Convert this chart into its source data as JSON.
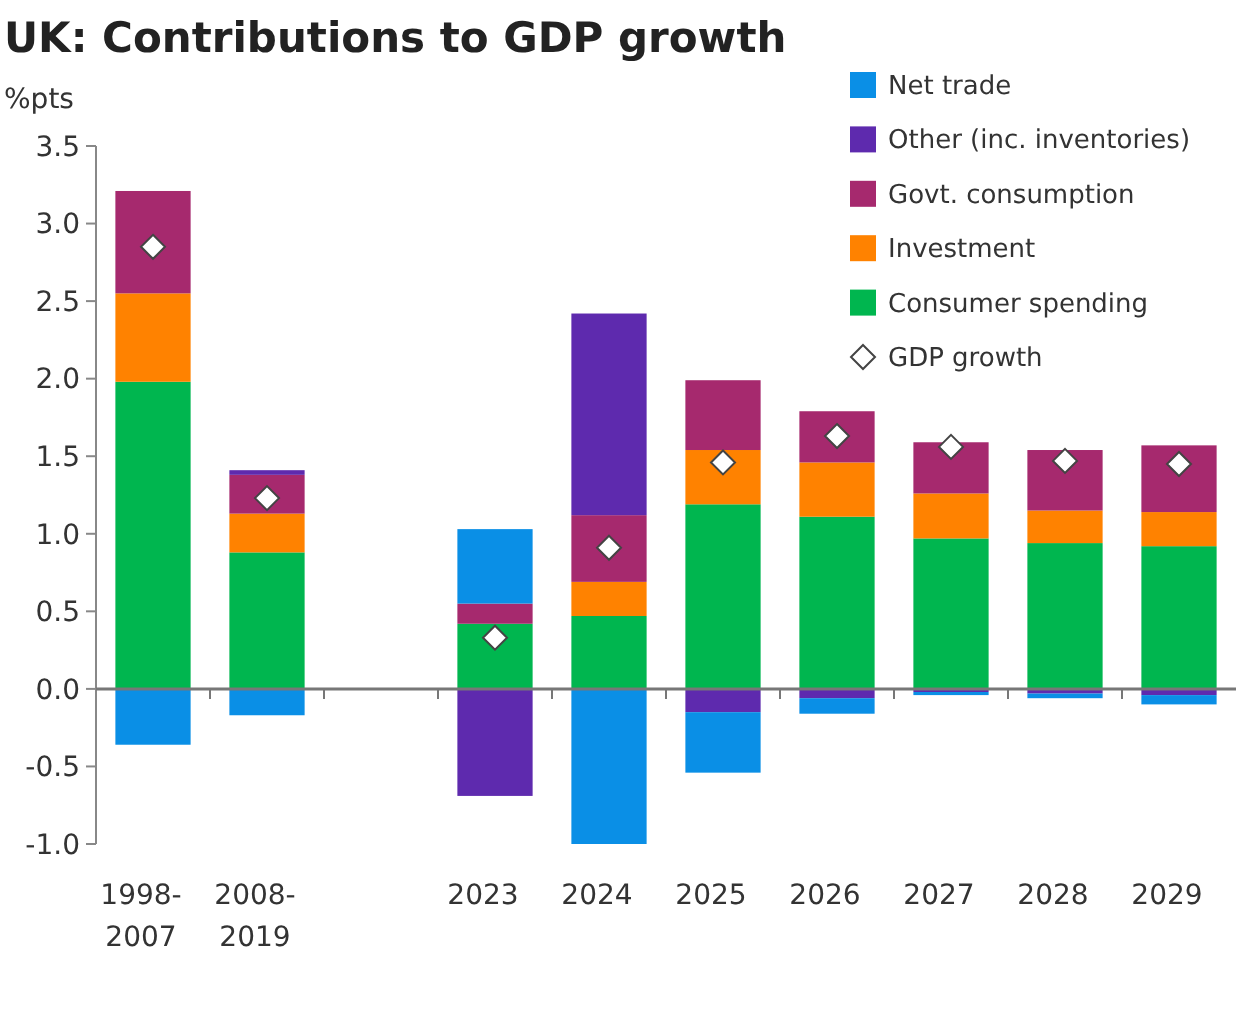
{
  "chart_data": {
    "type": "bar",
    "title": "UK: Contributions to GDP growth",
    "ylabel": "%pts",
    "stacked": true,
    "legend": "top right",
    "categories": [
      "1998-2007",
      "2008-2019",
      null,
      "2023",
      "2024",
      "2025",
      "2026",
      "2027",
      "2028",
      "2029"
    ],
    "ylim": [
      -1,
      3.5
    ],
    "yticks": [
      {
        "value": -1,
        "label": "-1.0"
      },
      {
        "value": -0.5,
        "label": "-0.5"
      },
      {
        "value": 0,
        "label": "0.0"
      },
      {
        "value": 0.5,
        "label": "0.5"
      },
      {
        "value": 1,
        "label": "1.0"
      },
      {
        "value": 1.5,
        "label": "1.5"
      },
      {
        "value": 2,
        "label": "2.0"
      },
      {
        "value": 2.5,
        "label": "2.5"
      },
      {
        "value": 3,
        "label": "3.0"
      },
      {
        "value": 3.5,
        "label": "3.5"
      }
    ],
    "series": [
      {
        "name": "Consumer spending",
        "color": "#00b64f",
        "values": [
          1.98,
          0.88,
          null,
          0.42,
          0.47,
          1.19,
          1.11,
          0.97,
          0.94,
          0.92
        ]
      },
      {
        "name": "Investment",
        "color": "#ff8200",
        "values": [
          0.57,
          0.25,
          null,
          0,
          0.22,
          0.35,
          0.35,
          0.29,
          0.21,
          0.22
        ]
      },
      {
        "name": "Govt. consumption",
        "color": "#a6296e",
        "values": [
          0.66,
          0.25,
          null,
          0.13,
          0.43,
          0.45,
          0.33,
          0.33,
          0.39,
          0.43
        ]
      },
      {
        "name": "Other (inc. inventories)",
        "color": "#5e2aae",
        "values": [
          0,
          0.03,
          null,
          -0.69,
          1.3,
          -0.15,
          -0.06,
          -0.02,
          -0.03,
          -0.04
        ]
      },
      {
        "name": "Net trade",
        "color": "#0a8fe6",
        "values": [
          -0.36,
          -0.17,
          null,
          0.48,
          -1.0,
          -0.39,
          -0.1,
          -0.02,
          -0.03,
          -0.06
        ]
      },
      {
        "name": "GDP growth",
        "type": "scatter",
        "marker": "diamond",
        "color": "#ffffff",
        "values": [
          2.85,
          1.23,
          null,
          0.33,
          0.91,
          1.46,
          1.63,
          1.56,
          1.47,
          1.45
        ]
      }
    ]
  }
}
